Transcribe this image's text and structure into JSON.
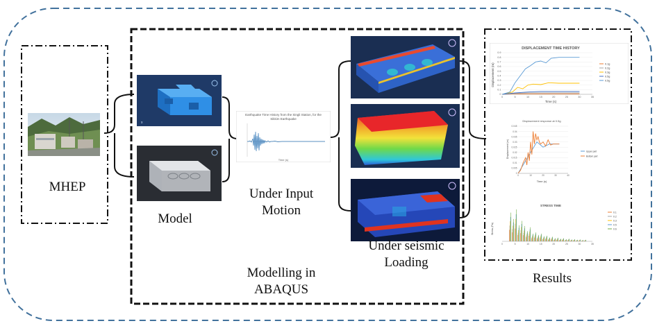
{
  "labels": {
    "mhep": "MHEP",
    "model": "Model",
    "under_input_motion_line1": "Under Input",
    "under_input_motion_line2": "Motion",
    "under_seismic_line1": "Under seismic",
    "under_seismic_line2": "Loading",
    "modelling_line1": "Modelling in",
    "modelling_line2": "ABAQUS",
    "results": "Results"
  },
  "earthquake_chart": {
    "title_line1": "Earthquake Time History from the Singli Station, for the",
    "title_line2": "Sikkim Earthquake",
    "xlabel": "Time (s)"
  },
  "chart_data": [
    {
      "type": "line",
      "title": "DISPLACEMENT TIME HISTORY",
      "xlabel": "Time (s)",
      "ylabel": "Displacement (m)",
      "xlim": [
        0,
        35
      ],
      "ylim": [
        0,
        0.9
      ],
      "x_ticks": [
        "0",
        "5",
        "10",
        "15",
        "20",
        "25",
        "30",
        "35"
      ],
      "y_ticks": [
        "0",
        "0.1",
        "0.2",
        "0.3",
        "0.4",
        "0.5",
        "0.6",
        "0.7",
        "0.8",
        "0.9"
      ],
      "legend_position": "right",
      "series": [
        {
          "name": "0.1g",
          "color": "#ed7d31",
          "x": [
            0,
            5,
            10,
            15,
            20,
            25,
            30
          ],
          "values": [
            0.0,
            0.01,
            0.01,
            0.01,
            0.01,
            0.01,
            0.01
          ]
        },
        {
          "name": "0.2g",
          "color": "#a5a5a5",
          "x": [
            0,
            5,
            10,
            15,
            20,
            25,
            30
          ],
          "values": [
            0.0,
            0.02,
            0.03,
            0.03,
            0.03,
            0.03,
            0.03
          ]
        },
        {
          "name": "0.3g",
          "color": "#ffc000",
          "x": [
            0,
            4,
            6,
            8,
            10,
            12,
            15,
            18,
            22,
            26,
            30
          ],
          "values": [
            0.0,
            0.05,
            0.15,
            0.12,
            0.2,
            0.22,
            0.21,
            0.25,
            0.24,
            0.24,
            0.24
          ]
        },
        {
          "name": "0.5g",
          "color": "#4472c4",
          "x": [
            0,
            5,
            10,
            15,
            20,
            25,
            30
          ],
          "values": [
            0.0,
            0.03,
            0.05,
            0.06,
            0.06,
            0.06,
            0.06
          ]
        },
        {
          "name": "0.5g",
          "color": "#5b9bd5",
          "x": [
            0,
            3,
            5,
            7,
            9,
            11,
            13,
            15,
            17,
            19,
            22,
            25,
            30
          ],
          "values": [
            0.0,
            0.05,
            0.25,
            0.4,
            0.55,
            0.62,
            0.7,
            0.72,
            0.68,
            0.78,
            0.8,
            0.8,
            0.8
          ]
        }
      ]
    },
    {
      "type": "line",
      "title": "Displacement response at 0.5g",
      "xlabel": "Time (s)",
      "ylabel": "Displacement (m)",
      "xlim": [
        0,
        40
      ],
      "ylim": [
        0,
        0.045
      ],
      "x_ticks": [
        "0",
        "10",
        "20",
        "30",
        "40"
      ],
      "y_ticks": [
        "0",
        "0.005",
        "0.01",
        "0.015",
        "0.02",
        "0.025",
        "0.03",
        "0.035",
        "0.04",
        "0.045"
      ],
      "legend_position": "right",
      "series": [
        {
          "name": "Upper part",
          "color": "#5b9bd5",
          "x": [
            0,
            5,
            10,
            15,
            20,
            25,
            30,
            33
          ],
          "values": [
            0.0,
            0.01,
            0.02,
            0.03,
            0.025,
            0.028,
            0.028,
            0.028
          ]
        },
        {
          "name": "Bottom part",
          "color": "#ed7d31",
          "x": [
            0,
            2,
            4,
            6,
            7,
            8,
            9,
            10,
            11,
            12,
            13,
            14,
            15,
            16,
            17,
            18,
            20,
            22,
            24,
            26,
            28,
            30,
            33
          ],
          "values": [
            0.0,
            0.003,
            0.01,
            0.015,
            0.008,
            0.02,
            0.012,
            0.03,
            0.018,
            0.04,
            0.028,
            0.038,
            0.032,
            0.035,
            0.03,
            0.028,
            0.03,
            0.026,
            0.032,
            0.027,
            0.028,
            0.028,
            0.028
          ]
        }
      ]
    },
    {
      "type": "bar",
      "title": "STRESS TIME",
      "xlabel": "",
      "ylabel": "Stress (Pa)",
      "x_ticks": [
        "0",
        "5",
        "10",
        "15",
        "20",
        "25",
        "30",
        "35"
      ],
      "legend_position": "right",
      "series": [
        {
          "name": "0.1",
          "color": "#ed7d31"
        },
        {
          "name": "0.2",
          "color": "#a5a5a5"
        },
        {
          "name": "0.3",
          "color": "#ffc000"
        },
        {
          "name": "0.5",
          "color": "#5b9bd5"
        },
        {
          "name": "0.6",
          "color": "#70ad47"
        }
      ]
    }
  ]
}
